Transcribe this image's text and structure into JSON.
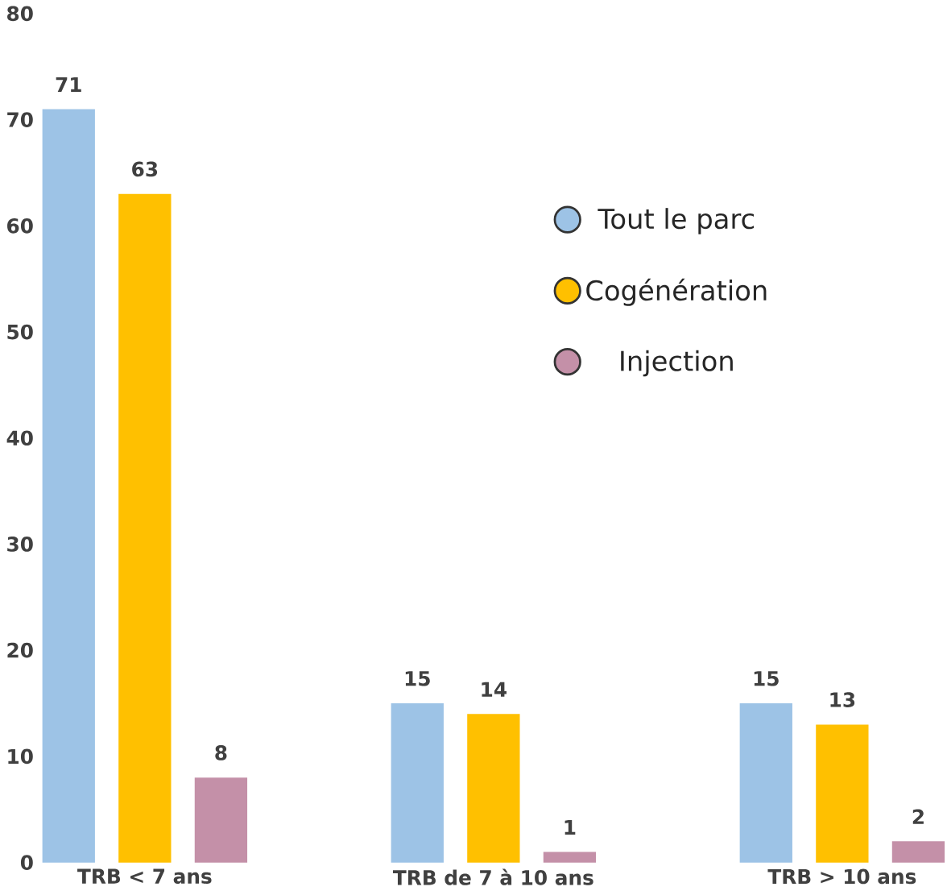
{
  "chart_data": {
    "type": "bar",
    "categories": [
      "TRB < 7 ans",
      "TRB de 7 à 10 ans",
      "TRB > 10 ans"
    ],
    "series": [
      {
        "name": "Tout le parc",
        "color": "#9dc3e6",
        "values": [
          71,
          15,
          15
        ]
      },
      {
        "name": "Cogénération",
        "color": "#ffc000",
        "values": [
          63,
          14,
          13
        ]
      },
      {
        "name": "Injection",
        "color": "#c490a8",
        "values": [
          8,
          1,
          2
        ]
      }
    ],
    "ylim": [
      0,
      80
    ],
    "yticks": [
      0,
      10,
      20,
      30,
      40,
      50,
      60,
      70,
      80
    ],
    "data_labels": true,
    "grid": false,
    "legend": "right"
  }
}
